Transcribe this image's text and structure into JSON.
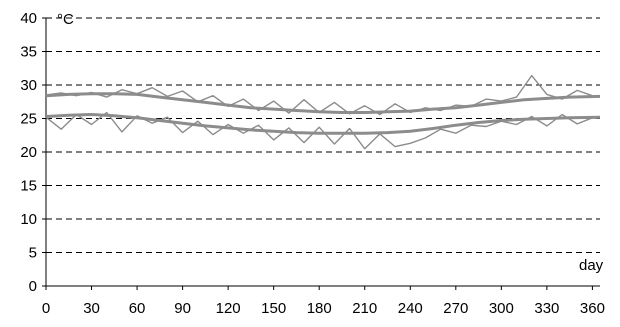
{
  "chart_data": {
    "type": "line",
    "title": "",
    "ylabel": "°C",
    "xlabel": "day",
    "xlim": [
      0,
      365
    ],
    "ylim": [
      0,
      40
    ],
    "x_ticks": [
      0,
      30,
      60,
      90,
      120,
      150,
      180,
      210,
      240,
      270,
      300,
      330,
      360
    ],
    "y_ticks": [
      0,
      5,
      10,
      15,
      20,
      25,
      30,
      35,
      40
    ],
    "grid": "horizontal dashed",
    "line_color": "#8c8c8c",
    "series": [
      {
        "style": "smoothed upper",
        "x": [
          0,
          15,
          30,
          45,
          60,
          75,
          90,
          105,
          120,
          135,
          150,
          165,
          180,
          195,
          210,
          225,
          240,
          255,
          270,
          285,
          300,
          315,
          330,
          345,
          365
        ],
        "y": [
          28.4,
          28.6,
          28.7,
          28.7,
          28.6,
          28.2,
          27.8,
          27.4,
          27.0,
          26.6,
          26.4,
          26.2,
          26.0,
          25.9,
          25.9,
          26.0,
          26.1,
          26.4,
          26.6,
          27.0,
          27.4,
          27.8,
          28.0,
          28.2,
          28.3
        ]
      },
      {
        "style": "smoothed lower",
        "x": [
          0,
          15,
          30,
          45,
          60,
          75,
          90,
          105,
          120,
          135,
          150,
          165,
          180,
          195,
          210,
          225,
          240,
          255,
          270,
          285,
          300,
          315,
          330,
          345,
          365
        ],
        "y": [
          25.3,
          25.5,
          25.6,
          25.4,
          25.1,
          24.7,
          24.3,
          23.9,
          23.6,
          23.3,
          23.1,
          22.9,
          22.8,
          22.8,
          22.8,
          22.9,
          23.1,
          23.5,
          24.0,
          24.4,
          24.7,
          24.9,
          25.0,
          25.1,
          25.2
        ]
      },
      {
        "style": "daily upper",
        "x": [
          0,
          10,
          20,
          30,
          40,
          50,
          60,
          70,
          80,
          90,
          100,
          110,
          120,
          130,
          140,
          150,
          160,
          170,
          180,
          190,
          200,
          210,
          220,
          230,
          240,
          250,
          260,
          270,
          280,
          290,
          300,
          310,
          320,
          330,
          340,
          350,
          360
        ],
        "y": [
          28.5,
          28.8,
          28.4,
          28.9,
          28.2,
          29.3,
          28.7,
          29.6,
          28.3,
          29.1,
          27.5,
          28.4,
          26.8,
          27.9,
          26.2,
          27.6,
          25.8,
          27.8,
          25.9,
          27.4,
          25.7,
          26.9,
          25.6,
          27.2,
          25.9,
          26.6,
          26.2,
          27.0,
          26.8,
          27.9,
          27.6,
          28.2,
          31.4,
          28.6,
          27.9,
          29.2,
          28.4
        ]
      },
      {
        "style": "daily lower",
        "x": [
          0,
          10,
          20,
          30,
          40,
          50,
          60,
          70,
          80,
          90,
          100,
          110,
          120,
          130,
          140,
          150,
          160,
          170,
          180,
          190,
          200,
          210,
          220,
          230,
          240,
          250,
          260,
          270,
          280,
          290,
          300,
          310,
          320,
          330,
          340,
          350,
          360
        ],
        "y": [
          25.2,
          23.4,
          25.6,
          24.1,
          25.9,
          23.0,
          25.4,
          24.3,
          25.2,
          22.9,
          24.6,
          22.6,
          24.1,
          22.8,
          24.0,
          21.8,
          23.6,
          21.4,
          23.7,
          21.2,
          23.5,
          20.5,
          22.7,
          20.8,
          21.3,
          22.1,
          23.4,
          22.8,
          24.0,
          23.8,
          24.6,
          24.1,
          25.3,
          23.9,
          25.6,
          24.2,
          25.1
        ]
      }
    ]
  }
}
